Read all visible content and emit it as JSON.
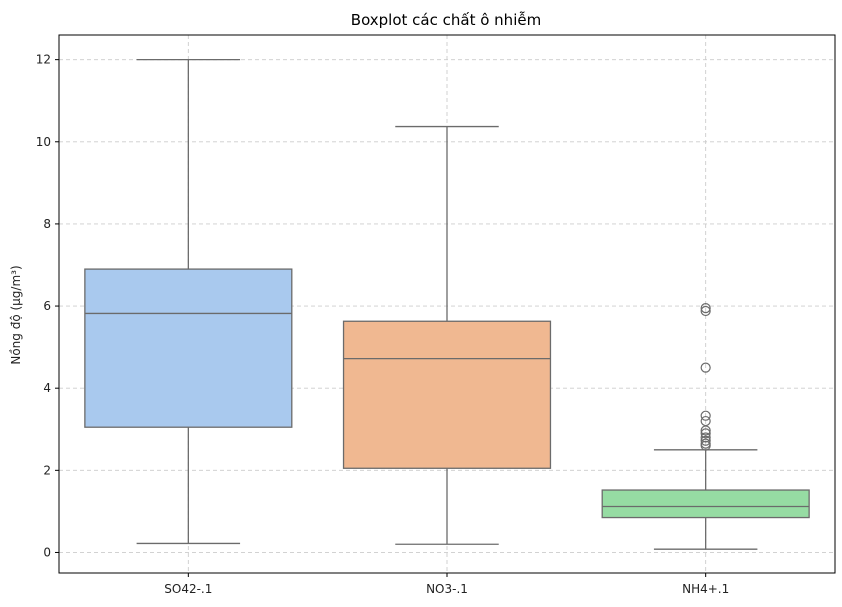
{
  "chart_data": {
    "type": "box",
    "title": "Boxplot các chất ô nhiễm",
    "xlabel": "",
    "ylabel": "Nồng độ (μg/m³)",
    "ylim": [
      -0.5,
      12.6
    ],
    "yticks": [
      0,
      2,
      4,
      6,
      8,
      10,
      12
    ],
    "grid": true,
    "categories": [
      "SO42-.1",
      "NO3-.1",
      "NH4+.1"
    ],
    "series": [
      {
        "category": "SO42-.1",
        "color": "#a9c9ee",
        "whisker_low": 0.22,
        "q1": 3.05,
        "median": 5.82,
        "q3": 6.9,
        "whisker_high": 12.0,
        "outliers": []
      },
      {
        "category": "NO3-.1",
        "color": "#f0b891",
        "whisker_low": 0.2,
        "q1": 2.05,
        "median": 4.72,
        "q3": 5.63,
        "whisker_high": 10.37,
        "outliers": []
      },
      {
        "category": "NH4+.1",
        "color": "#96dca3",
        "whisker_low": 0.08,
        "q1": 0.85,
        "median": 1.12,
        "q3": 1.52,
        "whisker_high": 2.5,
        "outliers": [
          2.6,
          2.65,
          2.72,
          2.8,
          2.9,
          2.97,
          3.2,
          3.33,
          4.5,
          5.88,
          5.95
        ]
      }
    ]
  }
}
